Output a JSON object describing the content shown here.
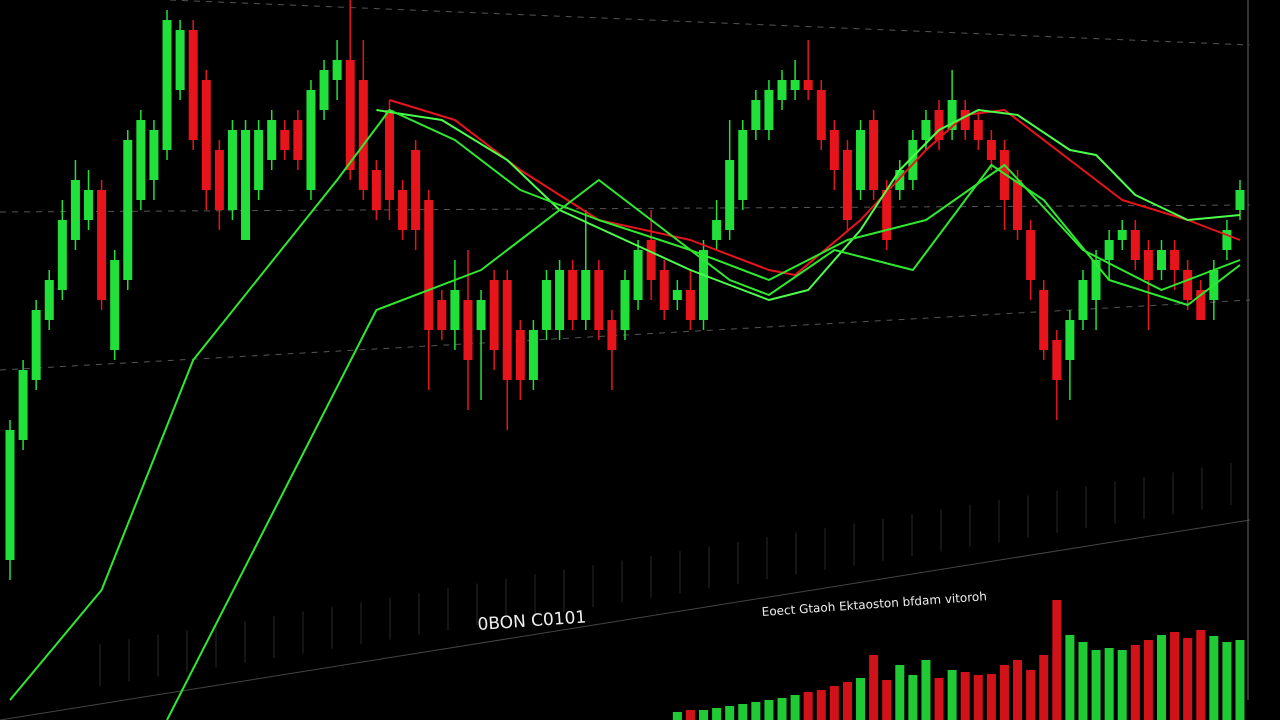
{
  "chart_data": {
    "type": "candlestick",
    "ylim": [
      0,
      720
    ],
    "up_color": "#22e03a",
    "down_color": "#e8141c",
    "open": [
      160,
      280,
      340,
      400,
      430,
      480,
      500,
      530,
      370,
      440,
      520,
      540,
      570,
      630,
      690,
      640,
      570,
      510,
      480,
      530,
      560,
      590,
      600,
      530,
      610,
      640,
      660,
      640,
      550,
      610,
      530,
      570,
      520,
      420,
      390,
      420,
      390,
      440,
      440,
      390,
      340,
      390,
      390,
      450,
      400,
      450,
      400,
      390,
      420,
      480,
      450,
      420,
      430,
      400,
      480,
      490,
      520,
      590,
      590,
      620,
      630,
      640,
      630,
      590,
      570,
      530,
      600,
      530,
      530,
      540,
      580,
      610,
      590,
      610,
      600,
      580,
      570,
      540,
      490,
      430,
      380,
      360,
      400,
      420,
      460,
      480,
      490,
      470,
      450,
      470,
      450,
      430,
      420,
      470,
      510
    ],
    "high": [
      300,
      360,
      420,
      450,
      520,
      560,
      550,
      540,
      470,
      590,
      610,
      600,
      710,
      700,
      700,
      650,
      580,
      600,
      600,
      600,
      610,
      600,
      610,
      640,
      660,
      680,
      720,
      680,
      560,
      620,
      540,
      580,
      530,
      430,
      460,
      470,
      430,
      450,
      450,
      400,
      400,
      450,
      460,
      460,
      510,
      460,
      410,
      450,
      480,
      510,
      460,
      440,
      450,
      480,
      520,
      600,
      600,
      630,
      640,
      650,
      660,
      680,
      640,
      600,
      580,
      600,
      610,
      540,
      560,
      590,
      610,
      620,
      650,
      620,
      610,
      590,
      580,
      550,
      500,
      440,
      390,
      410,
      450,
      470,
      490,
      500,
      500,
      480,
      480,
      480,
      460,
      440,
      460,
      500,
      540
    ],
    "low": [
      140,
      270,
      330,
      390,
      420,
      470,
      490,
      410,
      360,
      430,
      510,
      520,
      560,
      620,
      570,
      510,
      490,
      500,
      480,
      520,
      550,
      560,
      550,
      520,
      600,
      620,
      540,
      520,
      500,
      500,
      480,
      470,
      330,
      380,
      370,
      310,
      320,
      350,
      290,
      320,
      330,
      380,
      380,
      390,
      390,
      380,
      330,
      380,
      410,
      420,
      400,
      410,
      390,
      390,
      470,
      480,
      510,
      580,
      580,
      610,
      620,
      620,
      570,
      530,
      490,
      520,
      520,
      470,
      520,
      530,
      570,
      570,
      580,
      580,
      570,
      550,
      490,
      480,
      420,
      360,
      300,
      320,
      390,
      390,
      440,
      470,
      450,
      390,
      440,
      430,
      410,
      400,
      400,
      460,
      500
    ],
    "close": [
      290,
      350,
      410,
      440,
      500,
      540,
      530,
      420,
      460,
      580,
      600,
      590,
      700,
      690,
      580,
      530,
      510,
      590,
      590,
      590,
      600,
      570,
      560,
      630,
      650,
      660,
      550,
      530,
      510,
      520,
      490,
      490,
      390,
      390,
      430,
      360,
      420,
      370,
      340,
      340,
      390,
      440,
      450,
      400,
      450,
      390,
      370,
      440,
      470,
      440,
      410,
      430,
      400,
      470,
      500,
      560,
      590,
      620,
      630,
      640,
      640,
      630,
      580,
      550,
      500,
      590,
      530,
      480,
      550,
      580,
      600,
      580,
      620,
      590,
      580,
      560,
      520,
      490,
      440,
      370,
      340,
      400,
      440,
      460,
      480,
      490,
      460,
      440,
      470,
      450,
      420,
      400,
      450,
      490,
      530
    ],
    "series": [
      {
        "color": "#e8141c",
        "x": [
          29,
          34,
          39,
          45,
          52,
          58,
          60,
          65,
          70,
          73,
          76,
          81,
          85,
          90,
          94
        ],
        "values": [
          620,
          600,
          550,
          500,
          480,
          450,
          445,
          500,
          570,
          605,
          610,
          560,
          520,
          500,
          480
        ]
      },
      {
        "color": "#4cff4c",
        "x": [
          28,
          33,
          38,
          42,
          47,
          52,
          56,
          58,
          61,
          65,
          68,
          71,
          74,
          77,
          81,
          83,
          86,
          90,
          94
        ],
        "values": [
          610,
          600,
          560,
          510,
          480,
          450,
          430,
          420,
          430,
          490,
          550,
          590,
          610,
          605,
          570,
          565,
          525,
          500,
          505
        ]
      },
      {
        "color": "#30e830",
        "x": [
          0,
          7,
          14,
          25,
          29,
          34,
          39,
          45,
          52,
          58,
          64,
          70,
          76,
          82,
          88,
          94
        ],
        "values": [
          20,
          130,
          360,
          540,
          610,
          580,
          530,
          500,
          470,
          440,
          480,
          500,
          555,
          470,
          430,
          460
        ]
      },
      {
        "color": "#30e830",
        "x": [
          12,
          28,
          36,
          45,
          50,
          55,
          58,
          63,
          69,
          75,
          79,
          84,
          90,
          94
        ],
        "values": [
          0,
          410,
          450,
          540,
          490,
          440,
          425,
          470,
          450,
          555,
          520,
          440,
          415,
          455
        ]
      }
    ],
    "volume_ylim": [
      0,
      130
    ],
    "volume": [
      null,
      null,
      null,
      null,
      null,
      null,
      null,
      null,
      null,
      null,
      null,
      null,
      null,
      null,
      null,
      null,
      null,
      null,
      null,
      null,
      null,
      null,
      null,
      null,
      null,
      null,
      null,
      null,
      null,
      null,
      null,
      null,
      null,
      null,
      null,
      null,
      null,
      null,
      null,
      null,
      null,
      null,
      null,
      null,
      null,
      null,
      null,
      null,
      null,
      null,
      null,
      8,
      10,
      10,
      12,
      14,
      16,
      18,
      20,
      22,
      25,
      28,
      30,
      34,
      38,
      42,
      65,
      40,
      55,
      45,
      60,
      42,
      50,
      48,
      45,
      46,
      55,
      60,
      50,
      65,
      120,
      85,
      78,
      70,
      72,
      70,
      75,
      80,
      85,
      88,
      82,
      90,
      84,
      78,
      80
    ],
    "annotations": [
      "0BON C0101",
      "Eoect Gtaoh Ektaoston bfdam vitoroh"
    ]
  }
}
